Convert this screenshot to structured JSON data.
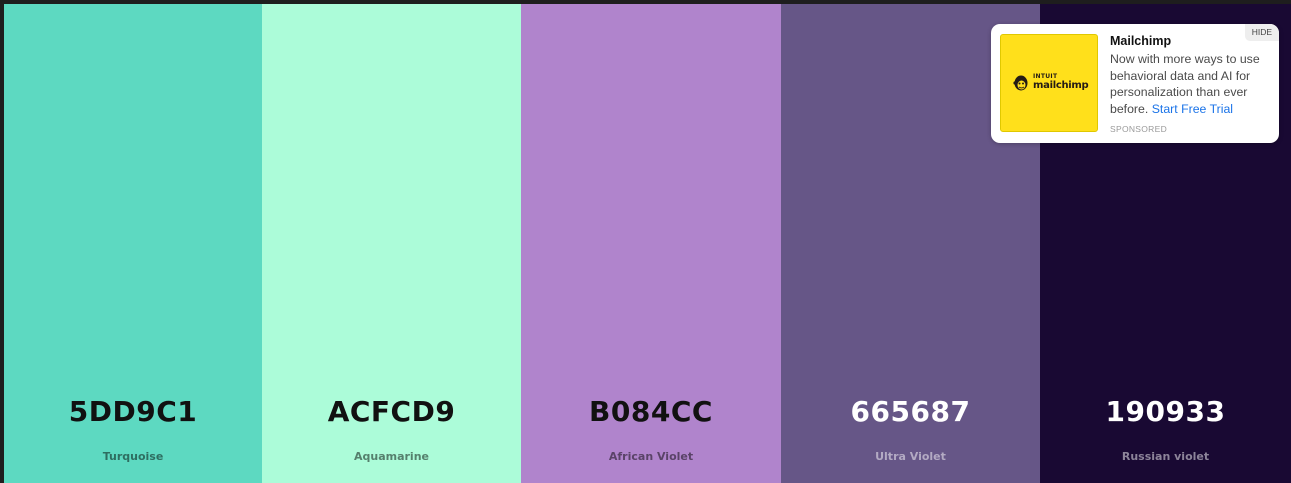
{
  "palette": {
    "swatches": [
      {
        "hex": "5DD9C1",
        "name": "Turquoise",
        "color": "#5DD9C1",
        "text_color": "#111111",
        "name_color": "#2e6e61"
      },
      {
        "hex": "ACFCD9",
        "name": "Aquamarine",
        "color": "#ACFCD9",
        "text_color": "#111111",
        "name_color": "#55806d"
      },
      {
        "hex": "B084CC",
        "name": "African Violet",
        "color": "#B084CC",
        "text_color": "#111111",
        "name_color": "#5a4368"
      },
      {
        "hex": "665687",
        "name": "Ultra Violet",
        "color": "#665687",
        "text_color": "#ffffff",
        "name_color": "#b3aac3"
      },
      {
        "hex": "190933",
        "name": "Russian violet",
        "color": "#190933",
        "text_color": "#ffffff",
        "name_color": "#8c8499"
      }
    ]
  },
  "ad": {
    "title": "Mailchimp",
    "body": "Now with more ways to use behavioral data and AI for personalization than ever before.",
    "cta": "Start Free Trial",
    "sponsored": "SPONSORED",
    "hide": "HIDE",
    "logo_top": "INTUIT",
    "logo_bottom": "mailchimp",
    "logo_color": "#FFE01B",
    "link_color": "#1A73E8",
    "logo_icon": "mailchimp-freddie-icon"
  }
}
